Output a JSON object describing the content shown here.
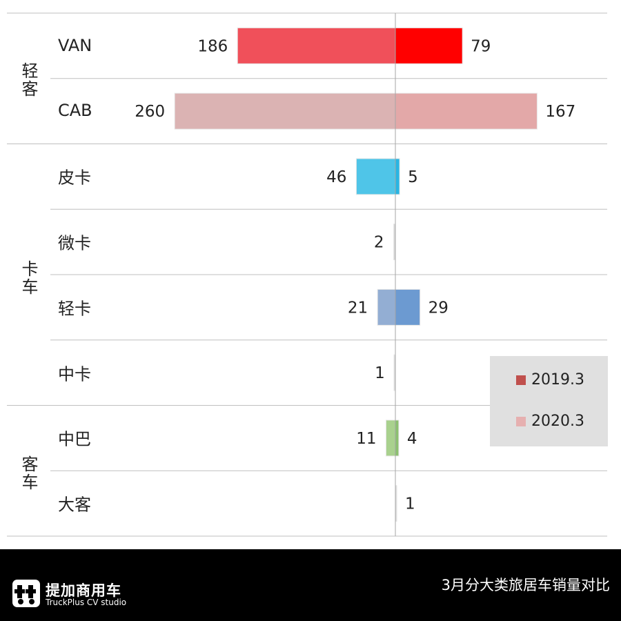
{
  "chart_data": {
    "type": "bar",
    "orientation": "horizontal-diverging",
    "groups": [
      {
        "label": "轻客",
        "categories": [
          "VAN",
          "CAB"
        ]
      },
      {
        "label": "卡车",
        "categories": [
          "皮卡",
          "微卡",
          "轻卡",
          "中卡"
        ]
      },
      {
        "label": "客车",
        "categories": [
          "中巴",
          "大客"
        ]
      }
    ],
    "categories": [
      "VAN",
      "CAB",
      "皮卡",
      "微卡",
      "轻卡",
      "中卡",
      "中巴",
      "大客"
    ],
    "series": [
      {
        "name": "2019.3",
        "side": "left",
        "values": [
          186,
          260,
          46,
          2,
          21,
          1,
          11,
          0
        ],
        "labels": [
          "186",
          "260",
          "46",
          "2",
          "21",
          "1",
          "11",
          ""
        ],
        "colors": [
          "#f0505a",
          "#dbb3b3",
          "#4fc5e8",
          "#d8d8d8",
          "#93aed3",
          "#d8d8d8",
          "#a9d18e",
          "#d8d8d8"
        ]
      },
      {
        "name": "2020.3",
        "side": "right",
        "values": [
          79,
          167,
          5,
          0,
          29,
          0,
          4,
          1
        ],
        "labels": [
          "79",
          "167",
          "5",
          "",
          "29",
          "",
          "4",
          "1"
        ],
        "colors": [
          "#ff0000",
          "#e3a8a8",
          "#29b5e3",
          "#d8d8d8",
          "#6c9ad1",
          "#d8d8d8",
          "#8cc070",
          "#d8d8d8"
        ]
      }
    ],
    "legend": {
      "position": "right",
      "items": [
        {
          "label": "2019.3",
          "color": "#c0504d"
        },
        {
          "label": "2020.3",
          "color": "#e6b0b0"
        }
      ]
    }
  },
  "footer": {
    "brand_name": "提加商用车",
    "brand_sub": "TruckPlus CV studio",
    "title": "3月分大类旅居车销量对比"
  }
}
